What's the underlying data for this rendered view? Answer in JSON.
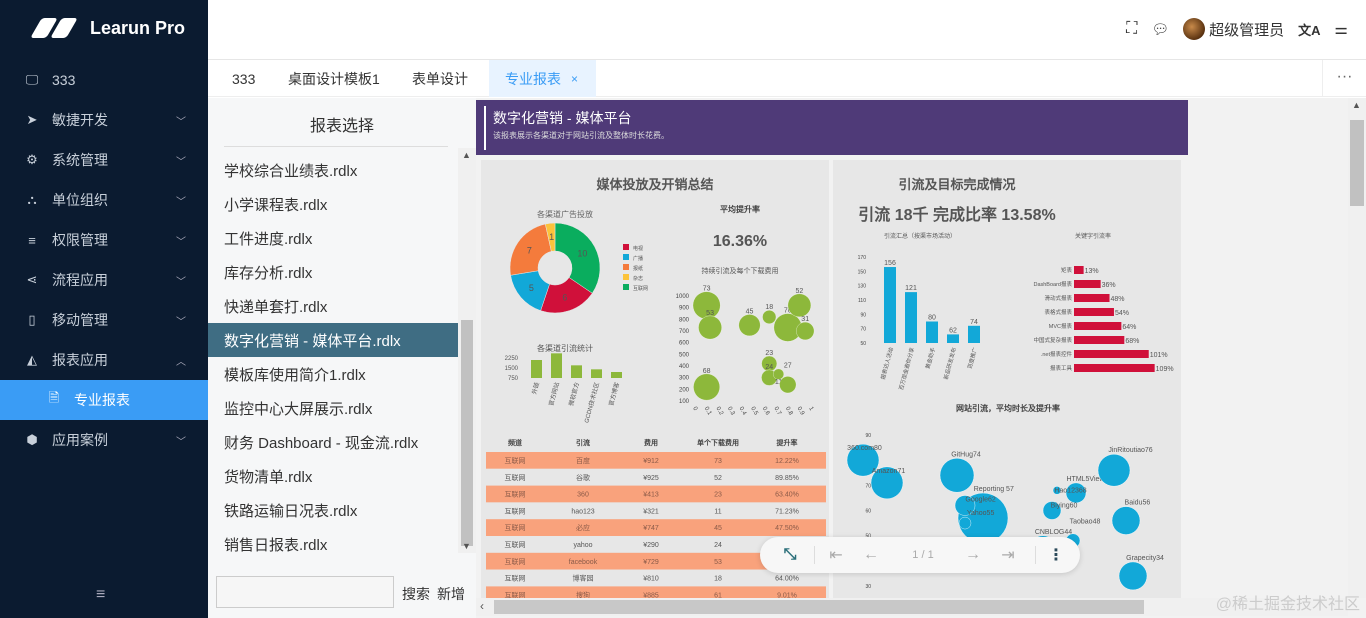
{
  "app": {
    "name": "Learun Pro"
  },
  "sidebar": {
    "items": [
      {
        "label": "333",
        "icon": "monitor-icon",
        "glyph": "🖵"
      },
      {
        "label": "敏捷开发",
        "icon": "paper-plane-icon",
        "glyph": "➤",
        "chevron": "down"
      },
      {
        "label": "系统管理",
        "icon": "gear-icon",
        "glyph": "⚙",
        "chevron": "down"
      },
      {
        "label": "单位组织",
        "icon": "sitemap-icon",
        "glyph": "⛬",
        "chevron": "down"
      },
      {
        "label": "权限管理",
        "icon": "list-icon",
        "glyph": "≡",
        "chevron": "down"
      },
      {
        "label": "流程应用",
        "icon": "share-icon",
        "glyph": "⋖",
        "chevron": "down"
      },
      {
        "label": "移动管理",
        "icon": "tablet-icon",
        "glyph": "▯",
        "chevron": "down"
      },
      {
        "label": "报表应用",
        "icon": "area-chart-icon",
        "glyph": "◭",
        "chevron": "up"
      },
      {
        "label": "专业报表",
        "icon": "file-icon",
        "glyph": "🗎",
        "active": true
      },
      {
        "label": "应用案例",
        "icon": "cube-icon",
        "glyph": "⬢",
        "chevron": "down"
      }
    ],
    "collapse_icon": "≡"
  },
  "header": {
    "user": "超级管理员",
    "icons": [
      "fullscreen-icon",
      "message-icon",
      "translate-icon",
      "settings-sliders-icon"
    ]
  },
  "tabs": [
    {
      "label": "333"
    },
    {
      "label": "桌面设计模板1"
    },
    {
      "label": "表单设计"
    },
    {
      "label": "专业报表",
      "active": true,
      "close": "×"
    }
  ],
  "tabs_more": "···",
  "report_list": {
    "title": "报表选择",
    "items": [
      "学校综合业绩表.rdlx",
      "小学课程表.rdlx",
      "工件进度.rdlx",
      "库存分析.rdlx",
      "快递单套打.rdlx",
      "数字化营销 - 媒体平台.rdlx",
      "模板库使用简介1.rdlx",
      "监控中心大屏展示.rdlx",
      "财务 Dashboard - 现金流.rdlx",
      "货物清单.rdlx",
      "铁路运输日况表.rdlx",
      "销售日报表.rdlx"
    ],
    "selected_index": 5,
    "search_placeholder": "",
    "search_label": "搜索",
    "add_label": "新增"
  },
  "report": {
    "title": "数字化营销 - 媒体平台",
    "subtitle": "该报表展示各渠道对于网站引流及整体时长花费。",
    "header_color": "#4f3a78",
    "left_panel": {
      "title": "媒体投放及开销总结",
      "avg_label": "平均提升率",
      "avg_value": "16.36%"
    },
    "right_panel": {
      "title": "引流及目标完成情况",
      "kpi": "引流 18千    完成比率 13.58%"
    },
    "table": {
      "headers": [
        "频道",
        "引流",
        "费用",
        "单个下载费用",
        "提升率"
      ],
      "rows": [
        [
          "互联网",
          "百度",
          "¥912",
          "73",
          "12.22%"
        ],
        [
          "互联网",
          "谷歌",
          "¥925",
          "52",
          "89.85%"
        ],
        [
          "互联网",
          "360",
          "¥413",
          "23",
          "63.40%"
        ],
        [
          "互联网",
          "hao123",
          "¥321",
          "11",
          "71.23%"
        ],
        [
          "互联网",
          "必应",
          "¥747",
          "45",
          "47.50%"
        ],
        [
          "互联网",
          "yahoo",
          "¥290",
          "24",
          ""
        ],
        [
          "互联网",
          "facebook",
          "¥729",
          "53",
          ""
        ],
        [
          "互联网",
          "博客园",
          "¥810",
          "18",
          "64.00%"
        ],
        [
          "互联网",
          "搜狗",
          "¥885",
          "61",
          "9.01%"
        ]
      ],
      "stripe_color": "#f9a27c"
    }
  },
  "chart_data": [
    {
      "type": "pie",
      "title": "各渠道广告投放",
      "donut": true,
      "categories": [
        "电视",
        "广播",
        "报纸",
        "杂志",
        "互联网"
      ],
      "values": [
        6,
        5,
        7,
        1,
        10
      ],
      "colors": [
        "#d0103a",
        "#12a8d8",
        "#f47b3c",
        "#fcc33b",
        "#0aad5e"
      ],
      "legend": "right"
    },
    {
      "type": "bar",
      "title": "各渠道引流统计",
      "categories": [
        "外链",
        "官方网站",
        "微软官方",
        "GCDN技术社区",
        "官方博客"
      ],
      "values": [
        1800,
        2300,
        1400,
        1100,
        900
      ],
      "yticks": [
        750,
        1500,
        2250
      ],
      "ylim": [
        750,
        2400
      ],
      "color": "#8db83b"
    },
    {
      "type": "scatter",
      "title": "持续引流及每个下载费用",
      "bubble": true,
      "xlim": [
        0,
        1
      ],
      "ylim": [
        100,
        1000
      ],
      "xticks": [
        0,
        0.1,
        0.2,
        0.3,
        0.4,
        0.5,
        0.6,
        0.7,
        0.8,
        0.9,
        1
      ],
      "yticks": [
        100,
        200,
        300,
        400,
        500,
        600,
        700,
        800,
        900,
        1000
      ],
      "color": "#8db83b",
      "points": [
        {
          "x": 0.1,
          "y": 920,
          "size": 73
        },
        {
          "x": 0.13,
          "y": 730,
          "size": 53
        },
        {
          "x": 0.47,
          "y": 750,
          "size": 45
        },
        {
          "x": 0.64,
          "y": 820,
          "size": 18
        },
        {
          "x": 0.8,
          "y": 730,
          "size": 76
        },
        {
          "x": 0.9,
          "y": 920,
          "size": 52
        },
        {
          "x": 0.95,
          "y": 700,
          "size": 31
        },
        {
          "x": 0.64,
          "y": 420,
          "size": 23
        },
        {
          "x": 0.64,
          "y": 300,
          "size": 24
        },
        {
          "x": 0.72,
          "y": 330,
          "size": 11
        },
        {
          "x": 0.8,
          "y": 240,
          "size": 27
        },
        {
          "x": 0.1,
          "y": 220,
          "size": 68
        }
      ]
    },
    {
      "type": "bar",
      "title": "引流汇总（按渠市场活动）",
      "categories": [
        "报表达人活动",
        "百万现金邀你分享",
        "黄金助手",
        "新品研发发布",
        "百度推广"
      ],
      "values": [
        156,
        121,
        80,
        62,
        74
      ],
      "yticks": [
        50,
        70,
        90,
        110,
        130,
        150,
        170
      ],
      "ylim": [
        50,
        170
      ],
      "color": "#12a8d8"
    },
    {
      "type": "bar",
      "orientation": "horizontal",
      "title": "关键字引流率",
      "categories": [
        "矩表",
        "DashBoard报表",
        "滑动式报表",
        "表格式报表",
        "MVC报表",
        "中国式复杂报表",
        ".net报表控件",
        "报表工具"
      ],
      "values": [
        13,
        36,
        48,
        54,
        64,
        68,
        101,
        109
      ],
      "unit": "%",
      "color": "#d0103a"
    },
    {
      "type": "scatter",
      "title": "网站引流，平均时长及提升率",
      "bubble": true,
      "yticks": [
        30,
        40,
        50,
        60,
        70,
        80,
        90
      ],
      "ylim": [
        30,
        90
      ],
      "color": "#12a8d8",
      "points": [
        {
          "label": "360.com80",
          "y": 80
        },
        {
          "label": "Amazon71",
          "y": 71
        },
        {
          "label": "GitHug74",
          "y": 74
        },
        {
          "label": "Reporting 57",
          "y": 57
        },
        {
          "label": "Google62",
          "y": 62
        },
        {
          "label": "Yahoo55",
          "y": 55
        },
        {
          "label": "HTML5Viewer67",
          "y": 67
        },
        {
          "label": "Hao12368",
          "y": 68
        },
        {
          "label": "Biying60",
          "y": 60
        },
        {
          "label": "JinRitoutiao76",
          "y": 76
        },
        {
          "label": "Baidu56",
          "y": 56
        },
        {
          "label": "CNBLOG44",
          "y": 44
        },
        {
          "label": "Taobao48",
          "y": 48
        },
        {
          "label": "Grapecity34",
          "y": 34
        }
      ]
    }
  ],
  "viewer_toolbar": {
    "page": "1 / 1",
    "icons": [
      "collapse-icon",
      "first-page-icon",
      "prev-page-icon",
      "next-page-icon",
      "last-page-icon",
      "more-icon"
    ]
  },
  "watermark": "@稀土掘金技术社区"
}
